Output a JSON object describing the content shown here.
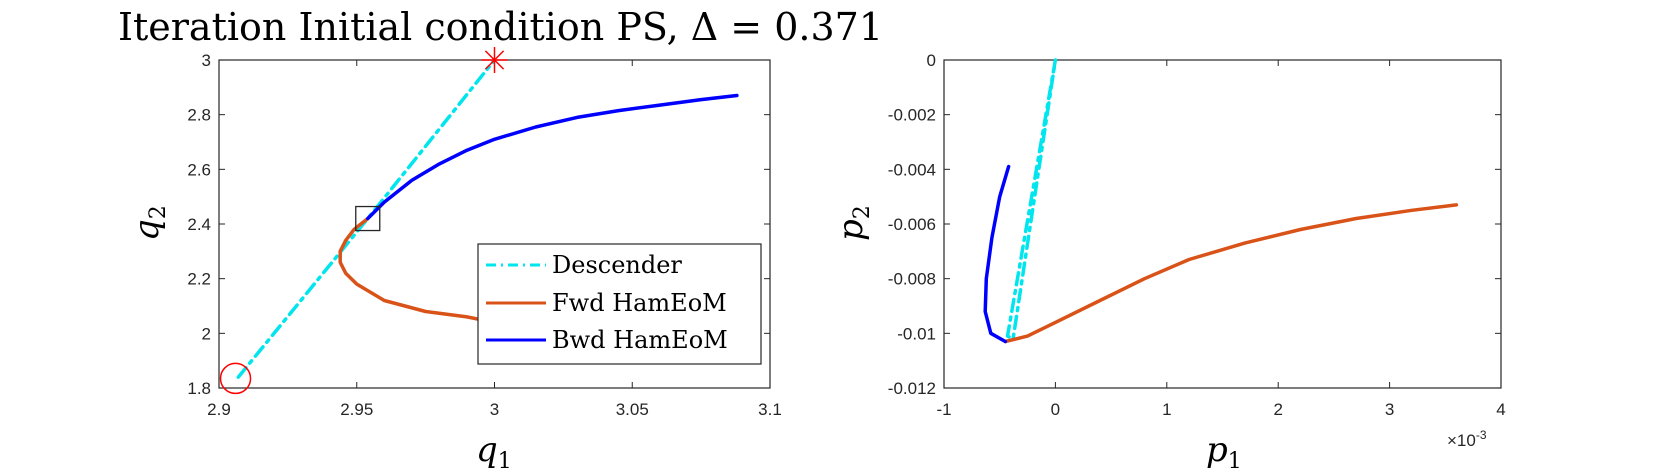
{
  "figure_title": "Iteration Initial condition PS, Δ = 0.371",
  "colors": {
    "descender": "#00e5ee",
    "fwd": "#d95319",
    "bwd": "#0000ff",
    "marker": "#ff0000",
    "axis": "#262626"
  },
  "chart_data": [
    {
      "type": "line",
      "xlabel_base": "q",
      "xlabel_sub": "1",
      "ylabel_base": "q",
      "ylabel_sub": "2",
      "xlim": [
        2.9,
        3.1
      ],
      "ylim": [
        1.8,
        3.0
      ],
      "xticks": [
        2.9,
        2.95,
        3.0,
        3.05,
        3.1
      ],
      "xtick_labels": [
        "2.9",
        "2.95",
        "3",
        "3.05",
        "3.1"
      ],
      "yticks": [
        1.8,
        2.0,
        2.2,
        2.4,
        2.6,
        2.8,
        3.0
      ],
      "ytick_labels": [
        "1.8",
        "2",
        "2.2",
        "2.4",
        "2.6",
        "2.8",
        "3"
      ],
      "legend_position": "bottom-right",
      "series": [
        {
          "name": "Descender",
          "style": "dash-dot",
          "color_key": "descender",
          "x": [
            2.907,
            2.954,
            3.0
          ],
          "y": [
            1.84,
            2.42,
            3.0
          ]
        },
        {
          "name": "Fwd HamEoM",
          "style": "solid",
          "color_key": "fwd",
          "x": [
            2.954,
            2.949,
            2.946,
            2.944,
            2.944,
            2.946,
            2.95,
            2.96,
            2.975,
            2.99,
            2.995
          ],
          "y": [
            2.42,
            2.38,
            2.34,
            2.3,
            2.26,
            2.22,
            2.18,
            2.12,
            2.08,
            2.06,
            2.05
          ]
        },
        {
          "name": "Bwd HamEoM",
          "style": "solid",
          "color_key": "bwd",
          "x": [
            2.954,
            2.96,
            2.97,
            2.98,
            2.99,
            3.0,
            3.015,
            3.03,
            3.045,
            3.06,
            3.075,
            3.088
          ],
          "y": [
            2.42,
            2.48,
            2.56,
            2.62,
            2.67,
            2.71,
            2.755,
            2.79,
            2.815,
            2.835,
            2.855,
            2.87
          ]
        }
      ],
      "markers": [
        {
          "kind": "circle",
          "x": 2.906,
          "y": 1.835,
          "color_key": "marker"
        },
        {
          "kind": "star",
          "x": 3.0,
          "y": 3.0,
          "color_key": "marker"
        },
        {
          "kind": "square",
          "x": 2.954,
          "y": 2.42,
          "color_key": "axis"
        }
      ]
    },
    {
      "type": "line",
      "xlabel_base": "p",
      "xlabel_sub": "1",
      "ylabel_base": "p",
      "ylabel_sub": "2",
      "xlim": [
        -0.001,
        0.004
      ],
      "ylim": [
        -0.012,
        0.0
      ],
      "xticks": [
        -0.001,
        0.0,
        0.001,
        0.002,
        0.003,
        0.004
      ],
      "xtick_labels": [
        "-1",
        "0",
        "1",
        "2",
        "3",
        "4"
      ],
      "x_exponent_base": "×10",
      "x_exponent_power": "-3",
      "yticks": [
        -0.012,
        -0.01,
        -0.008,
        -0.006,
        -0.004,
        -0.002,
        0.0
      ],
      "ytick_labels": [
        "-0.012",
        "-0.01",
        "-0.008",
        "-0.006",
        "-0.004",
        "-0.002",
        "0"
      ],
      "series": [
        {
          "name": "Descender",
          "style": "dash-dot",
          "color_key": "descender",
          "x": [
            0.0,
            -0.00043,
            -0.00038,
            0.0
          ],
          "y": [
            0.0,
            -0.0101,
            -0.0102,
            0.0
          ]
        },
        {
          "name": "Fwd HamEoM",
          "style": "solid",
          "color_key": "fwd",
          "x": [
            -0.00045,
            -0.00025,
            0.0,
            0.0004,
            0.0008,
            0.0012,
            0.0017,
            0.0022,
            0.0027,
            0.0032,
            0.0036
          ],
          "y": [
            -0.0103,
            -0.0101,
            -0.0096,
            -0.0088,
            -0.008,
            -0.0073,
            -0.0067,
            -0.0062,
            -0.0058,
            -0.0055,
            -0.0053
          ]
        },
        {
          "name": "Bwd HamEoM",
          "style": "solid",
          "color_key": "bwd",
          "x": [
            -0.00045,
            -0.00058,
            -0.00063,
            -0.00062,
            -0.00057,
            -0.0005,
            -0.00042
          ],
          "y": [
            -0.0103,
            -0.01,
            -0.0092,
            -0.008,
            -0.0065,
            -0.005,
            -0.0039
          ]
        }
      ]
    }
  ]
}
